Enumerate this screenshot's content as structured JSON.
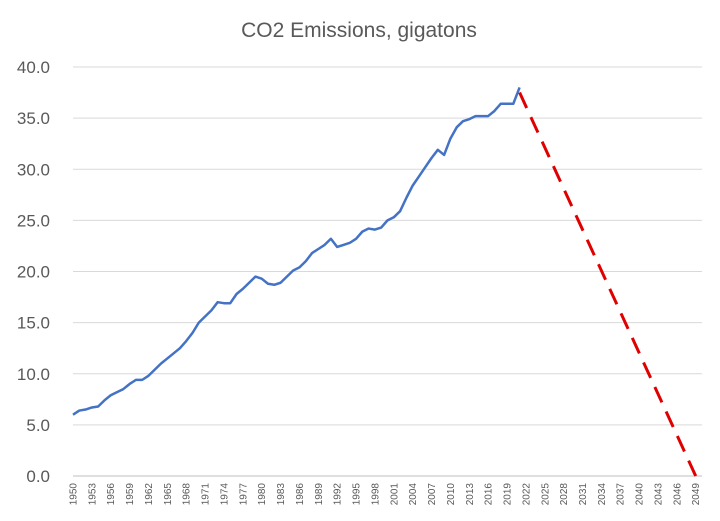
{
  "chart_data": {
    "type": "line",
    "title": "CO2 Emissions, gigatons",
    "xlabel": "",
    "ylabel": "",
    "ylim": [
      0,
      40
    ],
    "yticks": [
      "0.0",
      "5.0",
      "10.0",
      "15.0",
      "20.0",
      "25.0",
      "30.0",
      "35.0",
      "40.0"
    ],
    "xlim": [
      1950,
      2050
    ],
    "xtick_labels": [
      "1950",
      "1953",
      "1956",
      "1959",
      "1962",
      "1965",
      "1968",
      "1971",
      "1974",
      "1977",
      "1980",
      "1983",
      "1986",
      "1989",
      "1992",
      "1995",
      "1998",
      "2001",
      "2004",
      "2007",
      "2010",
      "2013",
      "2016",
      "2019",
      "2022",
      "2025",
      "2028",
      "2031",
      "2034",
      "2037",
      "2040",
      "2043",
      "2046",
      "2049"
    ],
    "grid": true,
    "legend": "none",
    "series": [
      {
        "color": "#4472c4",
        "style": "solid",
        "x": [
          1950,
          1951,
          1952,
          1953,
          1954,
          1955,
          1956,
          1957,
          1958,
          1959,
          1960,
          1961,
          1962,
          1963,
          1964,
          1965,
          1966,
          1967,
          1968,
          1969,
          1970,
          1971,
          1972,
          1973,
          1974,
          1975,
          1976,
          1977,
          1978,
          1979,
          1980,
          1981,
          1982,
          1983,
          1984,
          1985,
          1986,
          1987,
          1988,
          1989,
          1990,
          1991,
          1992,
          1993,
          1994,
          1995,
          1996,
          1997,
          1998,
          1999,
          2000,
          2001,
          2002,
          2003,
          2004,
          2005,
          2006,
          2007,
          2008,
          2009,
          2010,
          2011,
          2012,
          2013,
          2014,
          2015,
          2016,
          2017,
          2018,
          2019,
          2020,
          2021
        ],
        "values": [
          6.0,
          6.4,
          6.5,
          6.7,
          6.8,
          7.4,
          7.9,
          8.2,
          8.5,
          9.0,
          9.4,
          9.4,
          9.8,
          10.4,
          11.0,
          11.5,
          12.0,
          12.5,
          13.2,
          14.0,
          15.0,
          15.6,
          16.2,
          17.0,
          16.9,
          16.9,
          17.8,
          18.3,
          18.9,
          19.5,
          19.3,
          18.8,
          18.7,
          18.9,
          19.5,
          20.1,
          20.4,
          21.0,
          21.8,
          22.2,
          22.6,
          23.2,
          22.4,
          22.6,
          22.8,
          23.2,
          23.9,
          24.2,
          24.1,
          24.3,
          25.0,
          25.3,
          25.9,
          27.2,
          28.4,
          29.3,
          30.2,
          31.1,
          31.9,
          31.4,
          33.0,
          34.1,
          34.7,
          34.9,
          35.2,
          35.2,
          35.2,
          35.7,
          36.4,
          36.4,
          36.4,
          38.0
        ]
      },
      {
        "color": "#e00000",
        "style": "dashed",
        "x": [
          2021,
          2049
        ],
        "values": [
          37.5,
          0.0
        ]
      }
    ]
  }
}
